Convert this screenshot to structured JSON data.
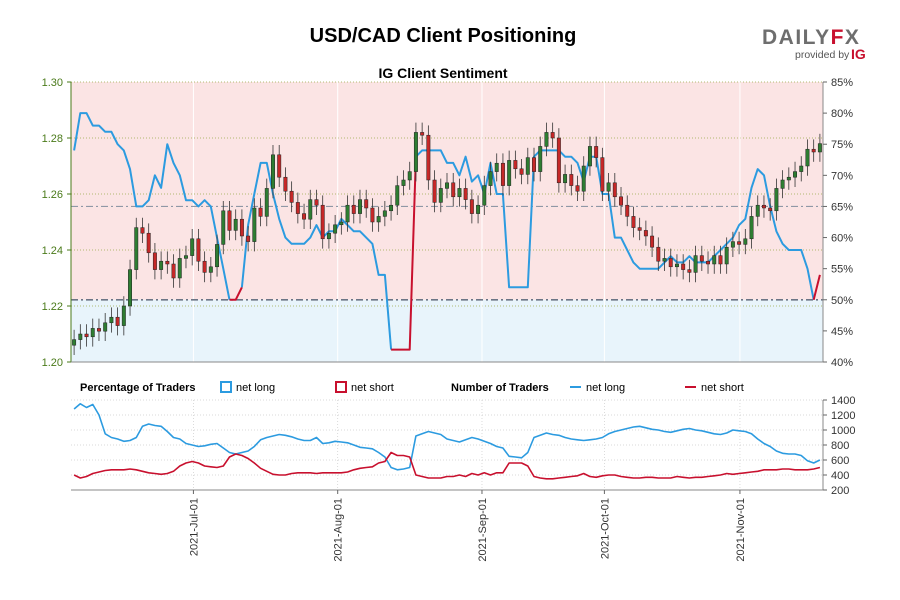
{
  "title": "USD/CAD Client Positioning",
  "subtitle": "IG Client Sentiment",
  "brand": {
    "logo_text": "DAILYFX",
    "provided_by": "provided by",
    "ig": "IG"
  },
  "colors": {
    "net_long": "#2c9be0",
    "net_short": "#c8102e",
    "candle_up": "#2e7d32",
    "candle_down": "#c62828",
    "long_zone_bg": "#e8f4fb",
    "short_zone_bg": "#fbe4e4",
    "left_axis": "#4a7a1a",
    "logo_gray": "#6e6e6e",
    "logo_accent": "#c8102e"
  },
  "legend": {
    "percentage_title": "Percentage of Traders",
    "number_title": "Number of Traders",
    "net_long": "net long",
    "net_short": "net short"
  },
  "chart_data": [
    {
      "type": "candlestick",
      "title": "IG Client Sentiment",
      "ylim_price": [
        1.2,
        1.3
      ],
      "price_ticks": [
        "1.20",
        "1.22",
        "1.24",
        "1.26",
        "1.28",
        "1.30"
      ],
      "ylim_pct": [
        40,
        85
      ],
      "pct_ticks": [
        "40%",
        "45%",
        "50%",
        "55%",
        "60%",
        "65%",
        "70%",
        "75%",
        "80%",
        "85%"
      ],
      "reference_lines_pct": [
        50,
        65
      ],
      "closes": [
        1.208,
        1.21,
        1.209,
        1.212,
        1.211,
        1.214,
        1.216,
        1.213,
        1.22,
        1.233,
        1.248,
        1.246,
        1.239,
        1.233,
        1.236,
        1.235,
        1.23,
        1.237,
        1.238,
        1.244,
        1.236,
        1.232,
        1.234,
        1.242,
        1.254,
        1.247,
        1.251,
        1.245,
        1.243,
        1.255,
        1.252,
        1.262,
        1.274,
        1.266,
        1.261,
        1.257,
        1.253,
        1.251,
        1.258,
        1.256,
        1.244,
        1.246,
        1.249,
        1.25,
        1.256,
        1.253,
        1.258,
        1.255,
        1.25,
        1.252,
        1.254,
        1.256,
        1.263,
        1.265,
        1.268,
        1.282,
        1.281,
        1.265,
        1.257,
        1.262,
        1.264,
        1.259,
        1.262,
        1.258,
        1.253,
        1.256,
        1.263,
        1.268,
        1.271,
        1.263,
        1.272,
        1.269,
        1.267,
        1.273,
        1.268,
        1.277,
        1.282,
        1.28,
        1.264,
        1.267,
        1.263,
        1.261,
        1.27,
        1.277,
        1.273,
        1.261,
        1.264,
        1.259,
        1.256,
        1.252,
        1.248,
        1.247,
        1.245,
        1.241,
        1.236,
        1.237,
        1.234,
        1.235,
        1.233,
        1.232,
        1.238,
        1.236,
        1.235,
        1.238,
        1.235,
        1.241,
        1.243,
        1.242,
        1.244,
        1.252,
        1.256,
        1.255,
        1.254,
        1.262,
        1.265,
        1.266,
        1.268,
        1.27,
        1.276,
        1.275,
        1.278
      ],
      "net_long_pct": [
        74,
        80,
        80,
        78,
        78,
        77,
        77,
        75,
        74,
        71,
        65,
        65,
        66,
        70,
        68,
        75,
        72,
        70,
        66,
        66,
        65,
        66,
        65,
        60,
        55,
        50,
        50,
        52,
        62,
        67,
        72,
        72,
        67,
        63,
        60,
        59,
        59,
        59,
        60,
        62,
        60,
        61,
        61,
        63,
        62,
        61,
        61,
        60,
        59,
        54,
        54,
        42,
        42,
        42,
        42,
        73,
        74,
        74,
        74,
        74,
        72,
        72,
        70,
        73,
        69,
        70,
        67,
        72,
        67,
        67,
        52,
        52,
        52,
        52,
        73,
        74,
        74,
        74,
        74,
        73,
        73,
        72,
        69,
        73,
        73,
        67,
        67,
        60,
        60,
        58,
        56,
        55,
        55,
        55,
        55,
        56,
        57,
        56,
        56,
        57,
        56,
        56,
        56,
        57,
        58,
        59,
        60,
        62,
        63,
        68,
        71,
        70,
        65,
        61,
        59,
        58,
        58,
        58,
        55,
        50,
        54
      ]
    },
    {
      "type": "line",
      "y_ticks": [
        "200",
        "400",
        "600",
        "800",
        "1000",
        "1200",
        "1400"
      ],
      "ylim": [
        200,
        1400
      ],
      "x_labels": [
        "2021-Jul-01",
        "2021-Aug-01",
        "2021-Sep-01",
        "2021-Oct-01",
        "2021-Nov-01"
      ],
      "series": [
        {
          "name": "net long",
          "values": [
            1280,
            1350,
            1300,
            1340,
            1200,
            950,
            900,
            880,
            850,
            860,
            900,
            1050,
            1080,
            1060,
            1050,
            980,
            900,
            880,
            820,
            800,
            780,
            790,
            810,
            820,
            760,
            700,
            680,
            700,
            720,
            780,
            870,
            900,
            920,
            940,
            930,
            910,
            880,
            860,
            860,
            900,
            820,
            830,
            850,
            840,
            830,
            800,
            770,
            760,
            750,
            700,
            640,
            500,
            470,
            480,
            500,
            920,
            950,
            980,
            960,
            940,
            880,
            860,
            840,
            870,
            900,
            880,
            850,
            820,
            780,
            760,
            650,
            640,
            630,
            700,
            900,
            930,
            960,
            940,
            930,
            900,
            880,
            870,
            860,
            870,
            880,
            900,
            950,
            980,
            1000,
            1020,
            1040,
            1050,
            1030,
            1010,
            1000,
            980,
            970,
            990,
            1010,
            1020,
            1000,
            990,
            970,
            950,
            940,
            960,
            1000,
            990,
            980,
            950,
            880,
            820,
            780,
            720,
            690,
            680,
            680,
            660,
            590,
            560,
            600
          ]
        },
        {
          "name": "net short",
          "values": [
            400,
            360,
            380,
            420,
            440,
            460,
            470,
            470,
            470,
            480,
            470,
            450,
            430,
            420,
            410,
            420,
            450,
            520,
            560,
            580,
            560,
            520,
            510,
            500,
            520,
            640,
            680,
            660,
            620,
            560,
            490,
            450,
            410,
            400,
            400,
            420,
            430,
            430,
            430,
            420,
            430,
            430,
            430,
            430,
            440,
            470,
            490,
            500,
            510,
            560,
            580,
            700,
            660,
            660,
            640,
            400,
            380,
            360,
            360,
            360,
            380,
            380,
            400,
            380,
            420,
            400,
            430,
            400,
            430,
            430,
            560,
            560,
            560,
            520,
            380,
            360,
            350,
            350,
            360,
            370,
            380,
            390,
            420,
            380,
            370,
            390,
            400,
            400,
            380,
            370,
            360,
            360,
            370,
            370,
            360,
            360,
            360,
            380,
            370,
            360,
            370,
            370,
            380,
            390,
            400,
            420,
            410,
            420,
            430,
            440,
            450,
            470,
            470,
            470,
            480,
            480,
            470,
            470,
            470,
            480,
            500
          ]
        }
      ]
    }
  ]
}
